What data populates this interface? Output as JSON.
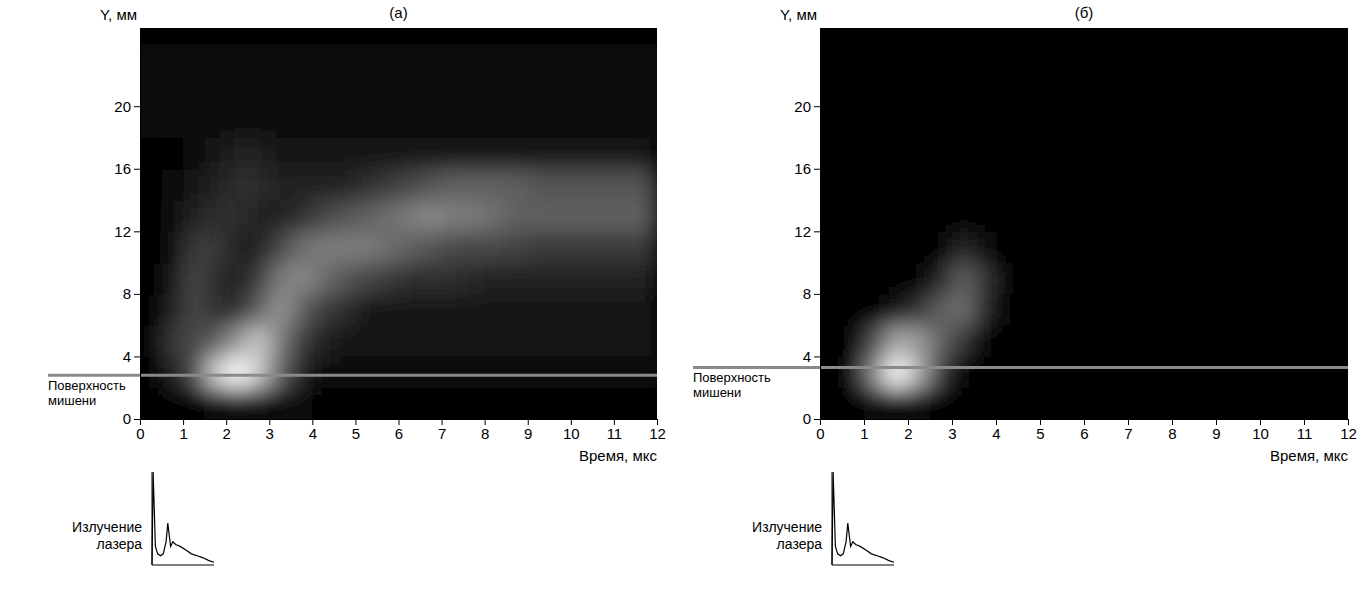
{
  "chart_data": [
    {
      "type": "heatmap",
      "title": "(а)",
      "x_label": "Время, мкс",
      "y_label": "Y, мм",
      "xlim": [
        0,
        12
      ],
      "ylim": [
        0,
        25
      ],
      "xticks": [
        0,
        1,
        2,
        3,
        4,
        5,
        6,
        7,
        8,
        9,
        10,
        11,
        12
      ],
      "yticks": [
        0,
        4,
        8,
        12,
        16,
        20
      ],
      "x_bins": [
        0,
        0.5,
        1,
        1.5,
        2,
        2.5,
        3,
        3.5,
        4,
        4.5,
        5,
        5.5,
        6,
        6.5,
        7,
        7.5,
        8,
        8.5,
        9,
        9.5,
        10,
        10.5,
        11,
        11.5,
        12
      ],
      "y_bins": [
        0,
        2,
        4,
        6,
        8,
        10,
        12,
        14,
        16,
        18,
        20,
        22,
        24
      ],
      "z": [
        [
          0.03,
          0.03,
          0.05,
          0.08,
          0.1,
          0.1,
          0.08,
          0.06,
          0.05,
          0.05,
          0.05,
          0.05,
          0.05,
          0.05,
          0.05,
          0.05,
          0.05,
          0.05,
          0.05,
          0.05,
          0.05,
          0.05,
          0.05,
          0.05
        ],
        [
          0.05,
          0.15,
          0.3,
          0.8,
          1.0,
          0.8,
          0.4,
          0.15,
          0.08,
          0.08,
          0.08,
          0.08,
          0.08,
          0.08,
          0.08,
          0.08,
          0.08,
          0.08,
          0.08,
          0.08,
          0.08,
          0.08,
          0.08,
          0.08
        ],
        [
          0.05,
          0.25,
          0.3,
          0.4,
          0.6,
          0.8,
          0.5,
          0.25,
          0.15,
          0.1,
          0.1,
          0.1,
          0.1,
          0.1,
          0.1,
          0.1,
          0.1,
          0.1,
          0.1,
          0.1,
          0.1,
          0.1,
          0.1,
          0.1
        ],
        [
          0.04,
          0.15,
          0.3,
          0.2,
          0.2,
          0.4,
          0.6,
          0.4,
          0.25,
          0.2,
          0.12,
          0.12,
          0.12,
          0.12,
          0.12,
          0.12,
          0.12,
          0.12,
          0.12,
          0.12,
          0.12,
          0.12,
          0.12,
          0.12
        ],
        [
          0.04,
          0.1,
          0.3,
          0.2,
          0.15,
          0.25,
          0.5,
          0.55,
          0.45,
          0.35,
          0.3,
          0.25,
          0.2,
          0.2,
          0.2,
          0.18,
          0.15,
          0.15,
          0.15,
          0.15,
          0.15,
          0.15,
          0.15,
          0.15
        ],
        [
          0.04,
          0.08,
          0.25,
          0.25,
          0.15,
          0.15,
          0.3,
          0.45,
          0.5,
          0.5,
          0.5,
          0.45,
          0.4,
          0.35,
          0.3,
          0.3,
          0.3,
          0.28,
          0.25,
          0.25,
          0.25,
          0.25,
          0.25,
          0.25
        ],
        [
          0.04,
          0.06,
          0.15,
          0.2,
          0.2,
          0.15,
          0.15,
          0.2,
          0.3,
          0.35,
          0.4,
          0.45,
          0.5,
          0.55,
          0.5,
          0.5,
          0.45,
          0.4,
          0.4,
          0.4,
          0.4,
          0.4,
          0.4,
          0.4
        ],
        [
          0.04,
          0.06,
          0.1,
          0.15,
          0.2,
          0.2,
          0.15,
          0.15,
          0.15,
          0.15,
          0.2,
          0.25,
          0.3,
          0.35,
          0.4,
          0.4,
          0.4,
          0.4,
          0.35,
          0.35,
          0.35,
          0.35,
          0.35,
          0.35
        ],
        [
          0.04,
          0.05,
          0.08,
          0.1,
          0.15,
          0.15,
          0.1,
          0.1,
          0.1,
          0.1,
          0.1,
          0.1,
          0.1,
          0.1,
          0.1,
          0.1,
          0.1,
          0.1,
          0.1,
          0.1,
          0.1,
          0.1,
          0.1,
          0.1
        ],
        [
          0.06,
          0.06,
          0.06,
          0.06,
          0.06,
          0.06,
          0.06,
          0.06,
          0.06,
          0.06,
          0.06,
          0.06,
          0.06,
          0.06,
          0.06,
          0.06,
          0.06,
          0.06,
          0.06,
          0.06,
          0.06,
          0.06,
          0.06,
          0.06
        ],
        [
          0.06,
          0.06,
          0.06,
          0.06,
          0.06,
          0.06,
          0.06,
          0.06,
          0.06,
          0.06,
          0.06,
          0.06,
          0.06,
          0.06,
          0.06,
          0.06,
          0.06,
          0.06,
          0.06,
          0.06,
          0.06,
          0.06,
          0.06,
          0.06
        ],
        [
          0.06,
          0.06,
          0.06,
          0.06,
          0.06,
          0.06,
          0.06,
          0.06,
          0.06,
          0.06,
          0.06,
          0.06,
          0.06,
          0.06,
          0.06,
          0.06,
          0.06,
          0.06,
          0.06,
          0.06,
          0.06,
          0.06,
          0.06,
          0.06
        ]
      ],
      "annotation": {
        "text": "Поверхность мишени",
        "y": 2.8
      },
      "laser_pulse": {
        "label": "Излучение лазера",
        "t": [
          0,
          0.02,
          0.04,
          0.06,
          0.1,
          0.15,
          0.2,
          0.25,
          0.28,
          0.3,
          0.33,
          0.37,
          0.42,
          0.5,
          0.6,
          0.7,
          0.8,
          0.9,
          1.0,
          1.1
        ],
        "values": [
          0,
          1.0,
          0.6,
          0.2,
          0.12,
          0.1,
          0.12,
          0.25,
          0.45,
          0.35,
          0.2,
          0.25,
          0.22,
          0.2,
          0.16,
          0.12,
          0.1,
          0.08,
          0.05,
          0.03
        ]
      }
    },
    {
      "type": "heatmap",
      "title": "(б)",
      "x_label": "Время, мкс",
      "y_label": "Y, мм",
      "xlim": [
        0,
        12
      ],
      "ylim": [
        0,
        25
      ],
      "xticks": [
        0,
        1,
        2,
        3,
        4,
        5,
        6,
        7,
        8,
        9,
        10,
        11,
        12
      ],
      "yticks": [
        0,
        4,
        8,
        12,
        16,
        20
      ],
      "x_bins": [
        0,
        0.5,
        1,
        1.5,
        2,
        2.5,
        3,
        3.5,
        4,
        4.5,
        5,
        5.5,
        6,
        6.5,
        7,
        7.5,
        8,
        8.5,
        9,
        9.5,
        10,
        10.5,
        11,
        11.5,
        12
      ],
      "y_bins": [
        0,
        2,
        4,
        6,
        8,
        10,
        12,
        14,
        16,
        18,
        20,
        22,
        24
      ],
      "z": [
        [
          0.02,
          0.02,
          0.05,
          0.05,
          0.05,
          0.02,
          0.02,
          0.02,
          0.02,
          0.02,
          0.02,
          0.02,
          0.02,
          0.02,
          0.02,
          0.02,
          0.02,
          0.02,
          0.02,
          0.02,
          0.02,
          0.02,
          0.02,
          0.02
        ],
        [
          0.02,
          0.05,
          0.5,
          0.9,
          0.6,
          0.2,
          0.03,
          0.03,
          0.03,
          0.03,
          0.03,
          0.03,
          0.03,
          0.03,
          0.03,
          0.03,
          0.03,
          0.03,
          0.03,
          0.03,
          0.03,
          0.03,
          0.03,
          0.03
        ],
        [
          0.02,
          0.03,
          0.3,
          0.6,
          0.55,
          0.35,
          0.2,
          0.02,
          0.02,
          0.02,
          0.02,
          0.02,
          0.02,
          0.02,
          0.02,
          0.02,
          0.02,
          0.02,
          0.02,
          0.02,
          0.02,
          0.02,
          0.02,
          0.02
        ],
        [
          0.02,
          0.02,
          0.03,
          0.1,
          0.2,
          0.35,
          0.4,
          0.15,
          0.02,
          0.02,
          0.02,
          0.02,
          0.02,
          0.02,
          0.02,
          0.02,
          0.02,
          0.02,
          0.02,
          0.02,
          0.02,
          0.02,
          0.02,
          0.02
        ],
        [
          0.02,
          0.02,
          0.02,
          0.02,
          0.02,
          0.15,
          0.35,
          0.2,
          0.02,
          0.02,
          0.02,
          0.02,
          0.02,
          0.02,
          0.02,
          0.02,
          0.02,
          0.02,
          0.02,
          0.02,
          0.02,
          0.02,
          0.02,
          0.02
        ],
        [
          0.02,
          0.02,
          0.02,
          0.02,
          0.02,
          0.02,
          0.15,
          0.08,
          0.02,
          0.02,
          0.02,
          0.02,
          0.02,
          0.02,
          0.02,
          0.02,
          0.02,
          0.02,
          0.02,
          0.02,
          0.02,
          0.02,
          0.02,
          0.02
        ],
        [
          0.02,
          0.02,
          0.02,
          0.02,
          0.02,
          0.02,
          0.02,
          0.02,
          0.02,
          0.02,
          0.02,
          0.02,
          0.02,
          0.02,
          0.02,
          0.02,
          0.02,
          0.02,
          0.02,
          0.02,
          0.02,
          0.02,
          0.02,
          0.02
        ],
        [
          0.02,
          0.02,
          0.02,
          0.02,
          0.02,
          0.02,
          0.02,
          0.02,
          0.02,
          0.02,
          0.02,
          0.02,
          0.02,
          0.02,
          0.02,
          0.02,
          0.02,
          0.02,
          0.02,
          0.02,
          0.02,
          0.02,
          0.02,
          0.02
        ],
        [
          0.02,
          0.02,
          0.02,
          0.02,
          0.02,
          0.02,
          0.02,
          0.02,
          0.02,
          0.02,
          0.02,
          0.02,
          0.02,
          0.02,
          0.02,
          0.02,
          0.02,
          0.02,
          0.02,
          0.02,
          0.02,
          0.02,
          0.02,
          0.02
        ],
        [
          0.02,
          0.02,
          0.02,
          0.02,
          0.02,
          0.02,
          0.02,
          0.02,
          0.02,
          0.02,
          0.02,
          0.02,
          0.02,
          0.02,
          0.02,
          0.02,
          0.02,
          0.02,
          0.02,
          0.02,
          0.02,
          0.02,
          0.02,
          0.02
        ],
        [
          0.02,
          0.02,
          0.02,
          0.02,
          0.02,
          0.02,
          0.02,
          0.02,
          0.02,
          0.02,
          0.02,
          0.02,
          0.02,
          0.02,
          0.02,
          0.02,
          0.02,
          0.02,
          0.02,
          0.02,
          0.02,
          0.02,
          0.02,
          0.02
        ],
        [
          0.02,
          0.02,
          0.02,
          0.02,
          0.02,
          0.02,
          0.02,
          0.02,
          0.02,
          0.02,
          0.02,
          0.02,
          0.02,
          0.02,
          0.02,
          0.02,
          0.02,
          0.02,
          0.02,
          0.02,
          0.02,
          0.02,
          0.02,
          0.02
        ]
      ],
      "annotation": {
        "text": "Поверхность мишени",
        "y": 3.3
      },
      "laser_pulse": {
        "label": "Излучение лазера",
        "t": [
          0,
          0.02,
          0.04,
          0.06,
          0.1,
          0.15,
          0.2,
          0.25,
          0.28,
          0.3,
          0.33,
          0.37,
          0.42,
          0.5,
          0.6,
          0.7,
          0.8,
          0.9,
          1.0,
          1.1
        ],
        "values": [
          0,
          1.0,
          0.6,
          0.2,
          0.12,
          0.1,
          0.12,
          0.25,
          0.45,
          0.35,
          0.2,
          0.25,
          0.22,
          0.2,
          0.16,
          0.12,
          0.1,
          0.08,
          0.05,
          0.03
        ]
      }
    }
  ]
}
